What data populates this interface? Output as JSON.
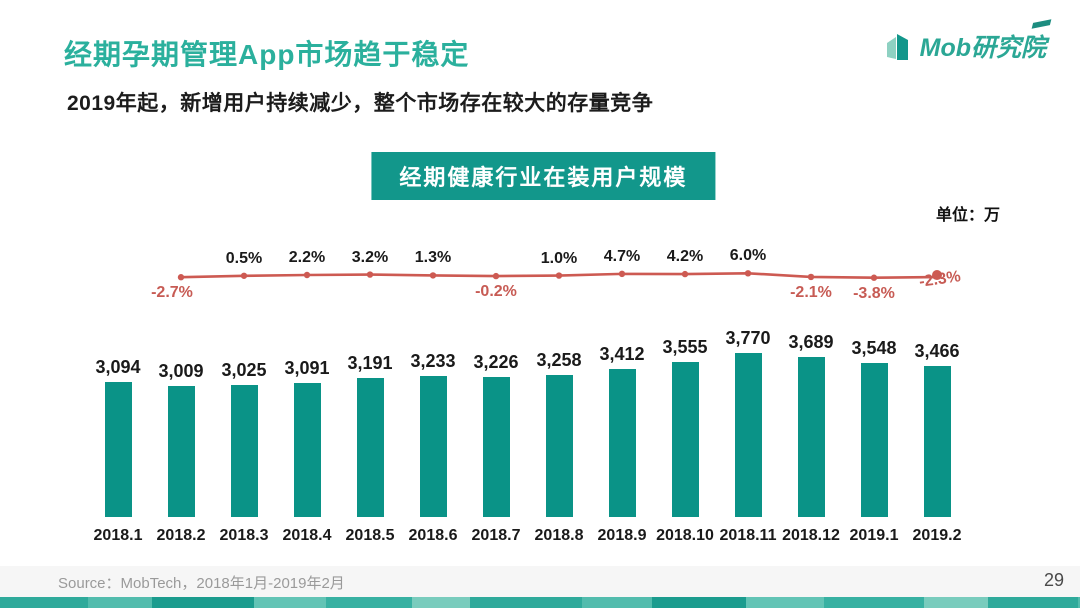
{
  "slide": {
    "title": "经期孕期管理App市场趋于稳定",
    "subtitle": "2019年起，新增用户持续减少，整个市场存在较大的存量竞争"
  },
  "logo": {
    "text": "Mob研究院"
  },
  "chart": {
    "badge_title": "经期健康行业在装用户规模",
    "unit_label": "单位：万"
  },
  "chart_data": {
    "type": "bar",
    "title": "经期健康行业在装用户规模",
    "unit": "万",
    "categories": [
      "2018.1",
      "2018.2",
      "2018.3",
      "2018.4",
      "2018.5",
      "2018.6",
      "2018.7",
      "2018.8",
      "2018.9",
      "2018.10",
      "2018.11",
      "2018.12",
      "2019.1",
      "2019.2"
    ],
    "series": [
      {
        "name": "installed-users",
        "type": "bar",
        "color": "#0a9387",
        "values": [
          3094,
          3009,
          3025,
          3091,
          3191,
          3233,
          3226,
          3258,
          3412,
          3555,
          3770,
          3689,
          3548,
          3466
        ]
      },
      {
        "name": "mom-growth-rate",
        "type": "line",
        "color": "#cd5a52",
        "unit": "%",
        "values": [
          null,
          -2.7,
          0.5,
          2.2,
          3.2,
          1.3,
          -0.2,
          1.0,
          4.7,
          4.2,
          6.0,
          -2.1,
          -3.8,
          -2.3
        ]
      }
    ],
    "value_labels": true,
    "axis": "none",
    "legend": "none"
  },
  "footer": {
    "source": "Source：MobTech，2018年1月-2019年2月",
    "page_number": "29"
  },
  "colors": {
    "title_teal": "#2bb09d",
    "bar_teal": "#0a9387",
    "badge_bg": "#12978b",
    "line_red": "#cd5a52",
    "negative_label_red": "#c75b54",
    "strip_teals": [
      "#2faa9b",
      "#52bcad",
      "#1b9c8e",
      "#62c4b5",
      "#38b1a2",
      "#79ccbd"
    ]
  }
}
